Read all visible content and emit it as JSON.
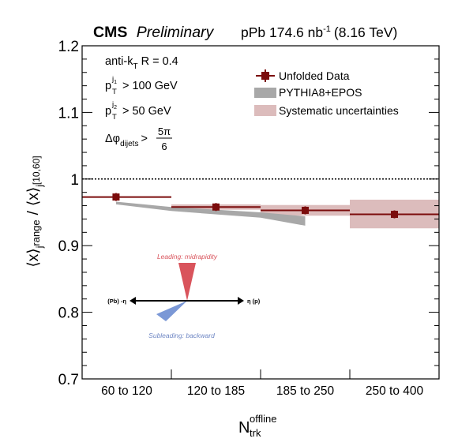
{
  "header": {
    "experiment": "CMS",
    "status": "Preliminary",
    "lumi_prefix": "pPb 174.6 nb",
    "lumi_exp": "-1",
    "energy": "(8.16 TeV)"
  },
  "cuts": {
    "jet_algo_base": "anti-k",
    "jet_algo_sub": "T",
    "jet_radius": "R = 0.4",
    "pt1_base": "p",
    "pt1_sub": "T",
    "pt1_sup": "j",
    "pt1_supsub": "1",
    "pt1_cut": "> 100 GeV",
    "pt2_base": "p",
    "pt2_sub": "T",
    "pt2_sup": "j",
    "pt2_supsub": "2",
    "pt2_cut": "> 50 GeV",
    "dphi_base": "Δφ",
    "dphi_sub": "dijets",
    "dphi_op": ">",
    "dphi_num": "5π",
    "dphi_den": "6"
  },
  "legend": {
    "data_label": "Unfolded Data",
    "mc_label": "PYTHIA8+EPOS",
    "syst_label": "Systematic uncertainties"
  },
  "sketch": {
    "leading_label": "Leading: midrapidity",
    "subleading_label": "Subleading: backward",
    "left_label": "(Pb) -η",
    "right_label": "η (p)"
  },
  "colors": {
    "data": "#7b0c0c",
    "syst_fill": "#dcbcbc",
    "mc_fill": "#a8a8a8",
    "leading": "#d9545c",
    "subleading": "#7b98d6"
  },
  "chart_data": {
    "type": "scatter",
    "ylabel_main": "⟨x⟩",
    "ylabel_sub": "j",
    "ylabel_subsub": "range",
    "ylabel_div": "/",
    "ylabel_den": "⟨x⟩",
    "ylabel_den_sub": "j",
    "ylabel_den_subsub": "[10,60]",
    "xlabel_base": "N",
    "xlabel_sub": "trk",
    "xlabel_sup": "offline",
    "ylim": [
      0.7,
      1.2
    ],
    "yticks": [
      0.7,
      0.8,
      0.9,
      1.0,
      1.1,
      1.2
    ],
    "ytick_labels": [
      "0.7",
      "0.8",
      "0.9",
      "1",
      "1.1",
      "1.2"
    ],
    "reference_line": 1.0,
    "categories": [
      "60 to 120",
      "120 to 185",
      "185 to 250",
      "250 to 400"
    ],
    "data": {
      "name": "Unfolded Data",
      "values": [
        0.973,
        0.958,
        0.953,
        0.947
      ],
      "x_in_bin": [
        0.38,
        0.5,
        0.5,
        0.5
      ],
      "syst_low": [
        0.973,
        0.954,
        0.945,
        0.926
      ],
      "syst_high": [
        0.973,
        0.962,
        0.961,
        0.969
      ]
    },
    "mc": {
      "name": "PYTHIA8+EPOS",
      "x_in_bins": [
        0.38,
        1.0,
        2.0,
        2.5
      ],
      "low": [
        0.962,
        0.952,
        0.942,
        0.93
      ],
      "high": [
        0.966,
        0.958,
        0.95,
        0.944
      ]
    }
  }
}
